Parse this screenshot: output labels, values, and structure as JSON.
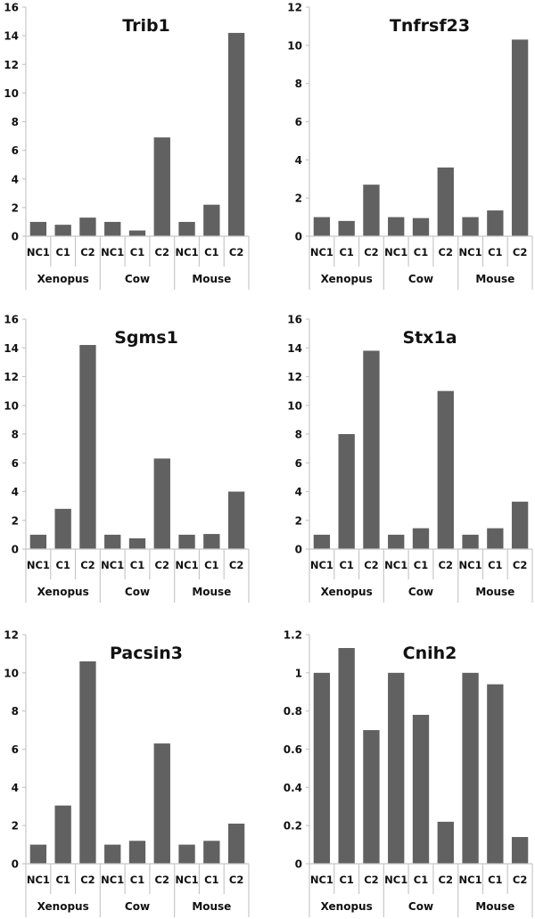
{
  "figure": {
    "bar_color": "#616161",
    "axis_color": "#c8c8c8"
  },
  "chart_data": [
    {
      "type": "bar",
      "title": "Trib1",
      "categories": [
        "NC1",
        "C1",
        "C2",
        "NC1",
        "C1",
        "C2",
        "NC1",
        "C1",
        "C2"
      ],
      "groups": [
        "Xenopus",
        "Cow",
        "Mouse"
      ],
      "values": [
        1.0,
        0.8,
        1.3,
        1.0,
        0.4,
        6.9,
        1.0,
        2.2,
        14.2
      ],
      "yticks": [
        "0",
        "2",
        "4",
        "6",
        "8",
        "10",
        "12",
        "14",
        "16"
      ],
      "ylim": [
        0,
        16
      ],
      "xlabel": "",
      "ylabel": "",
      "grid": false,
      "legend": "none"
    },
    {
      "type": "bar",
      "title": "Tnfrsf23",
      "categories": [
        "NC1",
        "C1",
        "C2",
        "NC1",
        "C1",
        "C2",
        "NC1",
        "C1",
        "C2"
      ],
      "groups": [
        "Xenopus",
        "Cow",
        "Mouse"
      ],
      "values": [
        1.0,
        0.8,
        2.7,
        1.0,
        0.95,
        3.6,
        1.0,
        1.35,
        10.3
      ],
      "yticks": [
        "0",
        "2",
        "4",
        "6",
        "8",
        "10",
        "12"
      ],
      "ylim": [
        0,
        12
      ],
      "xlabel": "",
      "ylabel": "",
      "grid": false,
      "legend": "none"
    },
    {
      "type": "bar",
      "title": "Sgms1",
      "categories": [
        "NC1",
        "C1",
        "C2",
        "NC1",
        "C1",
        "C2",
        "NC1",
        "C1",
        "C2"
      ],
      "groups": [
        "Xenopus",
        "Cow",
        "Mouse"
      ],
      "values": [
        1.0,
        2.8,
        14.2,
        1.0,
        0.75,
        6.3,
        1.0,
        1.05,
        4.0
      ],
      "yticks": [
        "0",
        "2",
        "4",
        "6",
        "8",
        "10",
        "12",
        "14",
        "16"
      ],
      "ylim": [
        0,
        16
      ],
      "xlabel": "",
      "ylabel": "",
      "grid": false,
      "legend": "none"
    },
    {
      "type": "bar",
      "title": "Stx1a",
      "categories": [
        "NC1",
        "C1",
        "C2",
        "NC1",
        "C1",
        "C2",
        "NC1",
        "C1",
        "C2"
      ],
      "groups": [
        "Xenopus",
        "Cow",
        "Mouse"
      ],
      "values": [
        1.0,
        8.0,
        13.8,
        1.0,
        1.45,
        11.0,
        1.0,
        1.45,
        3.3
      ],
      "yticks": [
        "0",
        "2",
        "4",
        "6",
        "8",
        "10",
        "12",
        "14",
        "16"
      ],
      "ylim": [
        0,
        16
      ],
      "xlabel": "",
      "ylabel": "",
      "grid": false,
      "legend": "none"
    },
    {
      "type": "bar",
      "title": "Pacsin3",
      "categories": [
        "NC1",
        "C1",
        "C2",
        "NC1",
        "C1",
        "C2",
        "NC1",
        "C1",
        "C2"
      ],
      "groups": [
        "Xenopus",
        "Cow",
        "Mouse"
      ],
      "values": [
        1.0,
        3.05,
        10.6,
        1.0,
        1.2,
        6.3,
        1.0,
        1.2,
        2.1
      ],
      "yticks": [
        "0",
        "2",
        "4",
        "6",
        "8",
        "10",
        "12"
      ],
      "ylim": [
        0,
        12
      ],
      "xlabel": "",
      "ylabel": "",
      "grid": false,
      "legend": "none"
    },
    {
      "type": "bar",
      "title": "Cnih2",
      "categories": [
        "NC1",
        "C1",
        "C2",
        "NC1",
        "C1",
        "C2",
        "NC1",
        "C1",
        "C2"
      ],
      "groups": [
        "Xenopus",
        "Cow",
        "Mouse"
      ],
      "values": [
        1.0,
        1.13,
        0.7,
        1.0,
        0.78,
        0.22,
        1.0,
        0.94,
        0.14
      ],
      "yticks": [
        "0",
        "0.2",
        "0.4",
        "0.6",
        "0.8",
        "1",
        "1.2"
      ],
      "ylim": [
        0,
        1.2
      ],
      "xlabel": "",
      "ylabel": "",
      "grid": false,
      "legend": "none"
    }
  ]
}
